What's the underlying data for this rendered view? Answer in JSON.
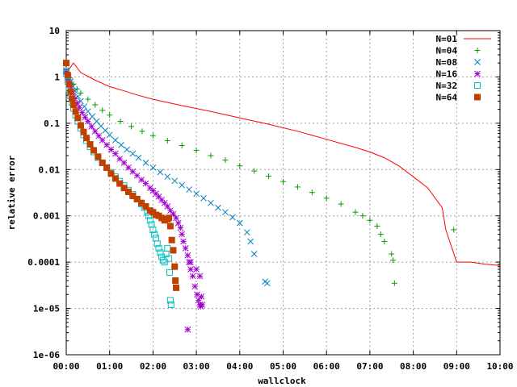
{
  "chart_data": {
    "type": "scatter",
    "title": "",
    "xlabel": "wallclock",
    "ylabel": "relative error",
    "xscale": "linear",
    "yscale": "log",
    "xlim": [
      0,
      600
    ],
    "ylim": [
      1e-06,
      10
    ],
    "x_ticks": [
      0,
      60,
      120,
      180,
      240,
      300,
      360,
      420,
      480,
      540,
      600
    ],
    "x_tick_labels": [
      "00:00",
      "01:00",
      "02:00",
      "03:00",
      "04:00",
      "05:00",
      "06:00",
      "07:00",
      "08:00",
      "09:00",
      "10:00"
    ],
    "y_ticks": [
      1e-06,
      1e-05,
      0.0001,
      0.001,
      0.01,
      0.1,
      1,
      10
    ],
    "y_tick_labels": [
      "1e-06",
      "1e-05",
      "0.0001",
      "0.001",
      "0.01",
      "0.1",
      "1",
      "10"
    ],
    "grid": true,
    "legend_position": "top-right",
    "series": [
      {
        "name": "N=01",
        "marker": "line",
        "color": "#ff0000",
        "x": [
          0,
          10,
          20,
          40,
          60,
          80,
          100,
          120,
          160,
          200,
          240,
          280,
          320,
          360,
          400,
          420,
          440,
          460,
          480,
          500,
          520,
          525,
          540,
          555,
          560,
          580,
          600
        ],
        "y": [
          1.2,
          2.0,
          1.25,
          0.85,
          0.62,
          0.5,
          0.4,
          0.33,
          0.24,
          0.18,
          0.13,
          0.095,
          0.067,
          0.045,
          0.03,
          0.024,
          0.018,
          0.012,
          0.007,
          0.004,
          0.0015,
          0.0005,
          0.0001,
          0.0001,
          0.0001,
          9e-05,
          8.5e-05
        ]
      },
      {
        "name": "N=04",
        "marker": "plus",
        "color": "#00a000",
        "x": [
          0,
          5,
          10,
          15,
          20,
          30,
          40,
          50,
          60,
          75,
          90,
          105,
          120,
          140,
          160,
          180,
          200,
          220,
          240,
          260,
          280,
          300,
          320,
          340,
          360,
          380,
          400,
          410,
          420,
          430,
          435,
          440,
          450,
          452,
          454,
          536
        ],
        "y": [
          1.4,
          0.95,
          0.7,
          0.55,
          0.45,
          0.33,
          0.25,
          0.19,
          0.15,
          0.11,
          0.085,
          0.067,
          0.054,
          0.042,
          0.033,
          0.026,
          0.02,
          0.016,
          0.012,
          0.0093,
          0.0072,
          0.0055,
          0.0042,
          0.0032,
          0.0024,
          0.0018,
          0.0012,
          0.001,
          0.0008,
          0.0006,
          0.0004,
          0.00028,
          0.00015,
          0.00011,
          3.5e-05,
          0.0005
        ]
      },
      {
        "name": "N=08",
        "marker": "cross",
        "color": "#0080c0",
        "x": [
          0,
          3,
          6,
          9,
          12,
          16,
          20,
          25,
          30,
          36,
          42,
          48,
          54,
          60,
          68,
          76,
          84,
          92,
          100,
          110,
          120,
          130,
          140,
          150,
          160,
          170,
          180,
          190,
          200,
          210,
          220,
          230,
          240,
          250,
          255,
          260,
          275,
          278
        ],
        "y": [
          1.4,
          1.0,
          0.8,
          0.62,
          0.5,
          0.38,
          0.3,
          0.23,
          0.18,
          0.14,
          0.11,
          0.087,
          0.07,
          0.056,
          0.043,
          0.034,
          0.027,
          0.022,
          0.018,
          0.014,
          0.011,
          0.0088,
          0.007,
          0.0057,
          0.0046,
          0.0037,
          0.003,
          0.0024,
          0.0019,
          0.0015,
          0.0012,
          0.00093,
          0.0007,
          0.00044,
          0.00028,
          0.00015,
          3.8e-05,
          3.5e-05
        ]
      },
      {
        "name": "N=16",
        "marker": "star",
        "color": "#a000d0",
        "x": [
          0,
          3,
          6,
          9,
          12,
          15,
          18,
          22,
          26,
          30,
          35,
          40,
          45,
          50,
          56,
          62,
          68,
          74,
          80,
          86,
          92,
          98,
          104,
          110,
          116,
          120,
          124,
          128,
          132,
          136,
          140,
          144,
          148,
          152,
          155,
          158,
          160,
          162,
          165,
          168,
          170,
          172,
          175,
          178,
          181,
          183,
          185,
          186,
          187,
          188,
          168,
          172,
          180,
          185
        ],
        "y": [
          1.3,
          0.9,
          0.62,
          0.45,
          0.34,
          0.27,
          0.22,
          0.17,
          0.135,
          0.11,
          0.085,
          0.067,
          0.053,
          0.043,
          0.034,
          0.027,
          0.022,
          0.017,
          0.014,
          0.011,
          0.009,
          0.0074,
          0.006,
          0.005,
          0.004,
          0.0035,
          0.003,
          0.0026,
          0.0022,
          0.0019,
          0.0016,
          0.0013,
          0.0011,
          0.0009,
          0.0007,
          0.00055,
          0.0004,
          0.00028,
          0.0002,
          0.00014,
          0.0001,
          7e-05,
          5e-05,
          3e-05,
          2e-05,
          1.5e-05,
          1.2e-05,
          1.1e-05,
          1.8e-05,
          1.2e-05,
          3.5e-06,
          0.0001,
          7e-05,
          5e-05
        ]
      },
      {
        "name": "N=32",
        "marker": "square-open",
        "color": "#00c0c0",
        "x": [
          0,
          2,
          4,
          6,
          8,
          10,
          13,
          16,
          20,
          24,
          28,
          33,
          38,
          44,
          50,
          56,
          62,
          68,
          74,
          80,
          86,
          92,
          98,
          104,
          108,
          112,
          114,
          116,
          118,
          120,
          122,
          124,
          126,
          128,
          130,
          132,
          134,
          136,
          138,
          140,
          142,
          143,
          144,
          145
        ],
        "y": [
          1.2,
          0.8,
          0.55,
          0.39,
          0.28,
          0.21,
          0.15,
          0.11,
          0.078,
          0.056,
          0.042,
          0.031,
          0.024,
          0.018,
          0.014,
          0.011,
          0.0087,
          0.007,
          0.0056,
          0.0045,
          0.0036,
          0.0029,
          0.0023,
          0.0018,
          0.0015,
          0.0012,
          0.001,
          0.0008,
          0.00065,
          0.0005,
          0.0004,
          0.00033,
          0.00025,
          0.0002,
          0.00016,
          0.00013,
          0.00011,
          0.0001,
          0.00015,
          0.0002,
          0.00012,
          6e-05,
          1.5e-05,
          1.2e-05
        ]
      },
      {
        "name": "N=64",
        "marker": "square-filled",
        "color": "#c04000",
        "x": [
          0,
          2,
          4,
          6,
          8,
          10,
          13,
          16,
          20,
          24,
          28,
          33,
          38,
          44,
          50,
          56,
          62,
          68,
          74,
          80,
          86,
          92,
          98,
          104,
          110,
          116,
          120,
          124,
          128,
          132,
          136,
          140,
          142,
          144,
          146,
          148,
          150,
          151,
          152
        ],
        "y": [
          2.0,
          1.1,
          0.7,
          0.48,
          0.34,
          0.25,
          0.18,
          0.13,
          0.09,
          0.065,
          0.048,
          0.035,
          0.026,
          0.019,
          0.014,
          0.011,
          0.0082,
          0.0064,
          0.005,
          0.004,
          0.0033,
          0.0027,
          0.0023,
          0.0019,
          0.0016,
          0.0013,
          0.0012,
          0.00105,
          0.001,
          0.0009,
          0.0008,
          0.00085,
          0.0009,
          0.0006,
          0.0003,
          0.00018,
          8e-05,
          4e-05,
          2.8e-05
        ]
      }
    ]
  }
}
